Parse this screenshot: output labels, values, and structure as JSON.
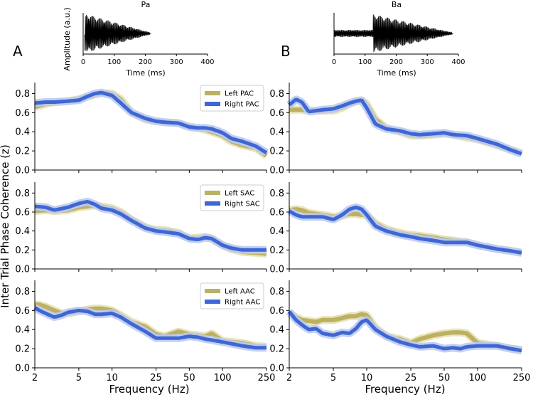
{
  "colors": {
    "left": "#bcb061",
    "left_band": "#e6e1b4",
    "right": "#3e66d6",
    "right_band": "#bccbef",
    "waveform": "#000000"
  },
  "panel_labels": {
    "a": "A",
    "b": "B"
  },
  "ylabel": "Inter Trial Phase Coherence (z)",
  "xlabel": "Frequency (Hz)",
  "waveforms": [
    {
      "title": "Pa",
      "ylabel": "Amplitude (a.u.)",
      "xlabel": "Time (ms)",
      "xlim": [
        0,
        400
      ],
      "xticks": [
        "0",
        "100",
        "200",
        "300",
        "400"
      ],
      "onset": 5,
      "voicing_onset": 10,
      "offset": 215
    },
    {
      "title": "Ba",
      "ylabel": "",
      "xlabel": "Time (ms)",
      "xlim": [
        0,
        400
      ],
      "xticks": [
        "0",
        "100",
        "200",
        "300",
        "400"
      ],
      "onset": 0,
      "voicing_onset": 125,
      "offset": 380
    }
  ],
  "chart_data": [
    {
      "type": "line",
      "panel": "A-top",
      "xscale": "log",
      "xlim": [
        2,
        250
      ],
      "ylim": [
        0,
        0.9
      ],
      "yticks": [
        "0.0",
        "0.2",
        "0.4",
        "0.6",
        "0.8"
      ],
      "xticks": [
        "2",
        "5",
        "10",
        "25",
        "50",
        "100",
        "250"
      ],
      "legend": {
        "position": "top-right",
        "entries": [
          "Left PAC",
          "Right PAC"
        ]
      },
      "x": [
        2,
        2.5,
        3,
        4,
        5,
        6,
        7,
        8,
        10,
        12,
        15,
        20,
        25,
        30,
        40,
        50,
        60,
        70,
        80,
        100,
        120,
        150,
        200,
        250
      ],
      "series": [
        {
          "name": "Left PAC",
          "values": [
            0.66,
            0.69,
            0.71,
            0.72,
            0.74,
            0.77,
            0.79,
            0.8,
            0.8,
            0.74,
            0.6,
            0.53,
            0.51,
            0.5,
            0.49,
            0.45,
            0.44,
            0.42,
            0.4,
            0.36,
            0.3,
            0.26,
            0.23,
            0.15
          ]
        },
        {
          "name": "Right PAC",
          "values": [
            0.7,
            0.71,
            0.71,
            0.72,
            0.73,
            0.77,
            0.8,
            0.81,
            0.78,
            0.7,
            0.6,
            0.54,
            0.51,
            0.5,
            0.49,
            0.45,
            0.44,
            0.44,
            0.43,
            0.39,
            0.33,
            0.3,
            0.25,
            0.18
          ]
        }
      ]
    },
    {
      "type": "line",
      "panel": "B-top",
      "xscale": "log",
      "xlim": [
        2,
        250
      ],
      "ylim": [
        0,
        0.9
      ],
      "yticks": [
        "0.0",
        "0.2",
        "0.4",
        "0.6",
        "0.8"
      ],
      "xticks": [
        "2",
        "5",
        "10",
        "25",
        "50",
        "100",
        "250"
      ],
      "x": [
        2,
        2.3,
        2.6,
        3,
        4,
        5,
        6,
        7,
        8,
        9,
        10,
        12,
        15,
        20,
        25,
        30,
        40,
        50,
        60,
        80,
        100,
        150,
        200,
        250
      ],
      "series": [
        {
          "name": "Left PAC",
          "values": [
            0.63,
            0.63,
            0.63,
            0.62,
            0.62,
            0.62,
            0.65,
            0.69,
            0.72,
            0.73,
            0.69,
            0.53,
            0.44,
            0.4,
            0.36,
            0.36,
            0.37,
            0.38,
            0.37,
            0.34,
            0.32,
            0.26,
            0.21,
            0.17
          ]
        },
        {
          "name": "Right PAC",
          "values": [
            0.68,
            0.74,
            0.71,
            0.61,
            0.63,
            0.64,
            0.67,
            0.7,
            0.72,
            0.73,
            0.65,
            0.48,
            0.43,
            0.41,
            0.38,
            0.37,
            0.38,
            0.39,
            0.37,
            0.36,
            0.33,
            0.27,
            0.21,
            0.17
          ]
        }
      ]
    },
    {
      "type": "line",
      "panel": "A-mid",
      "xscale": "log",
      "xlim": [
        2,
        250
      ],
      "ylim": [
        0,
        0.9
      ],
      "yticks": [
        "0.0",
        "0.2",
        "0.4",
        "0.6",
        "0.8"
      ],
      "xticks": [
        "2",
        "5",
        "10",
        "25",
        "50",
        "100",
        "250"
      ],
      "legend": {
        "position": "top-right",
        "entries": [
          "Left SAC",
          "Right SAC"
        ]
      },
      "x": [
        2,
        2.5,
        3,
        4,
        5,
        6,
        7,
        8,
        10,
        12,
        15,
        20,
        25,
        30,
        40,
        50,
        60,
        70,
        80,
        100,
        120,
        150,
        200,
        250
      ],
      "series": [
        {
          "name": "Left SAC",
          "values": [
            0.61,
            0.62,
            0.61,
            0.62,
            0.65,
            0.66,
            0.67,
            0.66,
            0.64,
            0.6,
            0.52,
            0.44,
            0.41,
            0.41,
            0.38,
            0.32,
            0.33,
            0.34,
            0.32,
            0.25,
            0.21,
            0.18,
            0.17,
            0.16
          ]
        },
        {
          "name": "Right SAC",
          "values": [
            0.66,
            0.65,
            0.62,
            0.65,
            0.69,
            0.71,
            0.68,
            0.64,
            0.62,
            0.58,
            0.51,
            0.43,
            0.4,
            0.39,
            0.37,
            0.32,
            0.31,
            0.33,
            0.32,
            0.25,
            0.22,
            0.2,
            0.2,
            0.2
          ]
        }
      ]
    },
    {
      "type": "line",
      "panel": "B-mid",
      "xscale": "log",
      "xlim": [
        2,
        250
      ],
      "ylim": [
        0,
        0.9
      ],
      "yticks": [
        "0.0",
        "0.2",
        "0.4",
        "0.6",
        "0.8"
      ],
      "xticks": [
        "2",
        "5",
        "10",
        "25",
        "50",
        "100",
        "250"
      ],
      "x": [
        2,
        2.3,
        2.6,
        3,
        4,
        5,
        6,
        7,
        8,
        9,
        10,
        12,
        15,
        20,
        25,
        30,
        40,
        50,
        60,
        80,
        100,
        150,
        200,
        250
      ],
      "series": [
        {
          "name": "Left SAC",
          "values": [
            0.62,
            0.63,
            0.62,
            0.59,
            0.57,
            0.55,
            0.56,
            0.58,
            0.58,
            0.57,
            0.57,
            0.48,
            0.42,
            0.38,
            0.36,
            0.35,
            0.33,
            0.31,
            0.3,
            0.28,
            0.25,
            0.21,
            0.19,
            0.17
          ]
        },
        {
          "name": "Right SAC",
          "values": [
            0.61,
            0.57,
            0.55,
            0.55,
            0.55,
            0.52,
            0.57,
            0.63,
            0.65,
            0.63,
            0.57,
            0.45,
            0.4,
            0.36,
            0.34,
            0.32,
            0.3,
            0.28,
            0.28,
            0.28,
            0.25,
            0.21,
            0.19,
            0.17
          ]
        }
      ]
    },
    {
      "type": "line",
      "panel": "A-bot",
      "xscale": "log",
      "xlim": [
        2,
        250
      ],
      "ylim": [
        0,
        0.9
      ],
      "yticks": [
        "0.0",
        "0.2",
        "0.4",
        "0.6",
        "0.8"
      ],
      "xticks": [
        "2",
        "5",
        "10",
        "25",
        "50",
        "100",
        "250"
      ],
      "legend": {
        "position": "top-right",
        "entries": [
          "Left AAC",
          "Right AAC"
        ]
      },
      "x": [
        2,
        2.2,
        2.5,
        3,
        3.5,
        4,
        5,
        6,
        7,
        8,
        10,
        12,
        15,
        20,
        25,
        30,
        40,
        50,
        60,
        70,
        80,
        100,
        150,
        200,
        250
      ],
      "series": [
        {
          "name": "Left AAC",
          "values": [
            0.66,
            0.66,
            0.64,
            0.6,
            0.57,
            0.57,
            0.59,
            0.61,
            0.62,
            0.62,
            0.6,
            0.55,
            0.48,
            0.43,
            0.35,
            0.33,
            0.38,
            0.35,
            0.34,
            0.33,
            0.36,
            0.28,
            0.26,
            0.23,
            0.22
          ]
        },
        {
          "name": "Right AAC",
          "values": [
            0.63,
            0.6,
            0.57,
            0.53,
            0.55,
            0.58,
            0.6,
            0.59,
            0.56,
            0.56,
            0.57,
            0.53,
            0.46,
            0.38,
            0.31,
            0.31,
            0.31,
            0.33,
            0.32,
            0.3,
            0.29,
            0.27,
            0.23,
            0.21,
            0.21
          ]
        }
      ]
    },
    {
      "type": "line",
      "panel": "B-bot",
      "xscale": "log",
      "xlim": [
        2,
        250
      ],
      "ylim": [
        0,
        0.9
      ],
      "yticks": [
        "0.0",
        "0.2",
        "0.4",
        "0.6",
        "0.8"
      ],
      "xticks": [
        "2",
        "5",
        "10",
        "25",
        "50",
        "100",
        "250"
      ],
      "x": [
        2,
        2.3,
        2.6,
        3,
        3.5,
        4,
        5,
        6,
        7,
        8,
        9,
        10,
        12,
        15,
        20,
        25,
        30,
        40,
        50,
        60,
        70,
        80,
        100,
        150,
        200,
        250
      ],
      "series": [
        {
          "name": "Left AAC",
          "values": [
            0.57,
            0.53,
            0.5,
            0.49,
            0.48,
            0.5,
            0.5,
            0.52,
            0.54,
            0.54,
            0.56,
            0.55,
            0.42,
            0.33,
            0.3,
            0.26,
            0.3,
            0.34,
            0.36,
            0.37,
            0.37,
            0.36,
            0.26,
            0.23,
            0.2,
            0.19
          ]
        },
        {
          "name": "Right AAC",
          "values": [
            0.59,
            0.5,
            0.45,
            0.4,
            0.41,
            0.36,
            0.34,
            0.37,
            0.36,
            0.41,
            0.48,
            0.5,
            0.4,
            0.33,
            0.27,
            0.24,
            0.22,
            0.23,
            0.2,
            0.21,
            0.2,
            0.22,
            0.23,
            0.23,
            0.2,
            0.18
          ]
        }
      ]
    }
  ]
}
